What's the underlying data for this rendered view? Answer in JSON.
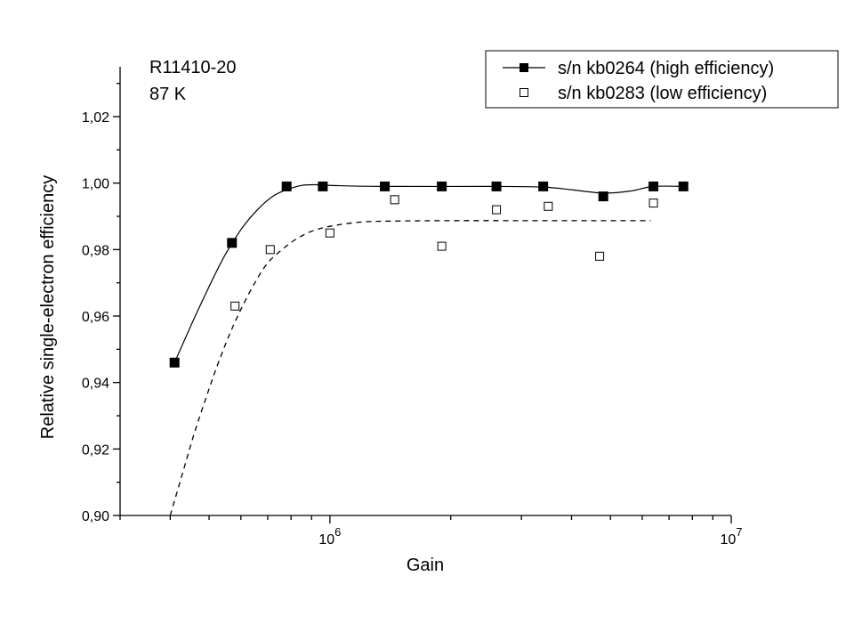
{
  "chart_data": {
    "type": "scatter",
    "xlabel": "Gain",
    "ylabel": "Relative single-electron efficiency",
    "x_scale": "log",
    "xlim": [
      300000,
      10000000
    ],
    "ylim": [
      0.9,
      1.035
    ],
    "x_major_ticks": [
      {
        "value": 1000000,
        "base": "10",
        "exp": "6"
      },
      {
        "value": 10000000,
        "base": "10",
        "exp": "7"
      }
    ],
    "x_minor_ticks": [
      300000,
      400000,
      500000,
      600000,
      700000,
      800000,
      900000,
      2000000,
      3000000,
      4000000,
      5000000,
      6000000,
      7000000,
      8000000,
      9000000
    ],
    "y_ticks": [
      {
        "value": 0.9,
        "label": "0,90"
      },
      {
        "value": 0.92,
        "label": "0,92"
      },
      {
        "value": 0.94,
        "label": "0,94"
      },
      {
        "value": 0.96,
        "label": "0,96"
      },
      {
        "value": 0.98,
        "label": "0,98"
      },
      {
        "value": 1.0,
        "label": "1,00"
      },
      {
        "value": 1.02,
        "label": "1,02"
      }
    ],
    "y_minor_ticks": [
      0.91,
      0.93,
      0.95,
      0.97,
      0.99,
      1.01,
      1.03
    ],
    "annotations": [
      "R11410-20",
      "87 K"
    ],
    "legend_position": "top-right",
    "series": [
      {
        "name": "s/n kb0264 (high efficiency)",
        "marker": "filled-square",
        "line": "solid",
        "x": [
          410000,
          570000,
          780000,
          960000,
          1370000,
          1900000,
          2600000,
          3400000,
          4800000,
          6400000,
          7600000
        ],
        "y": [
          0.946,
          0.982,
          0.999,
          0.999,
          0.999,
          0.999,
          0.999,
          0.999,
          0.996,
          0.999,
          0.999
        ],
        "fit_x": [
          410000,
          470000,
          540000,
          600000,
          660000,
          720000,
          780000,
          850000,
          920000,
          1000000,
          1370000,
          2600000,
          3400000,
          4000000,
          4800000,
          5600000,
          6400000,
          7600000
        ],
        "fit_y": [
          0.946,
          0.962,
          0.977,
          0.986,
          0.992,
          0.996,
          0.998,
          0.9993,
          0.9995,
          0.9993,
          0.999,
          0.999,
          0.9988,
          0.998,
          0.997,
          0.9976,
          0.999,
          0.999
        ]
      },
      {
        "name": "s/n kb0283 (low efficiency)",
        "marker": "open-square",
        "line": "dashed",
        "x": [
          580000,
          710000,
          1000000,
          1450000,
          1900000,
          2600000,
          3500000,
          4700000,
          6400000
        ],
        "y": [
          0.963,
          0.98,
          0.985,
          0.995,
          0.981,
          0.992,
          0.993,
          0.978,
          0.994
        ],
        "fit_x": [
          400000,
          430000,
          460000,
          490000,
          520000,
          560000,
          600000,
          650000,
          700000,
          760000,
          820000,
          900000,
          1000000,
          1200000,
          1500000,
          2000000,
          3000000,
          4500000,
          6300000
        ],
        "fit_y": [
          0.9,
          0.913,
          0.925,
          0.935,
          0.944,
          0.954,
          0.962,
          0.97,
          0.976,
          0.98,
          0.983,
          0.9855,
          0.987,
          0.9883,
          0.9886,
          0.9887,
          0.9887,
          0.9887,
          0.9887
        ]
      }
    ]
  }
}
